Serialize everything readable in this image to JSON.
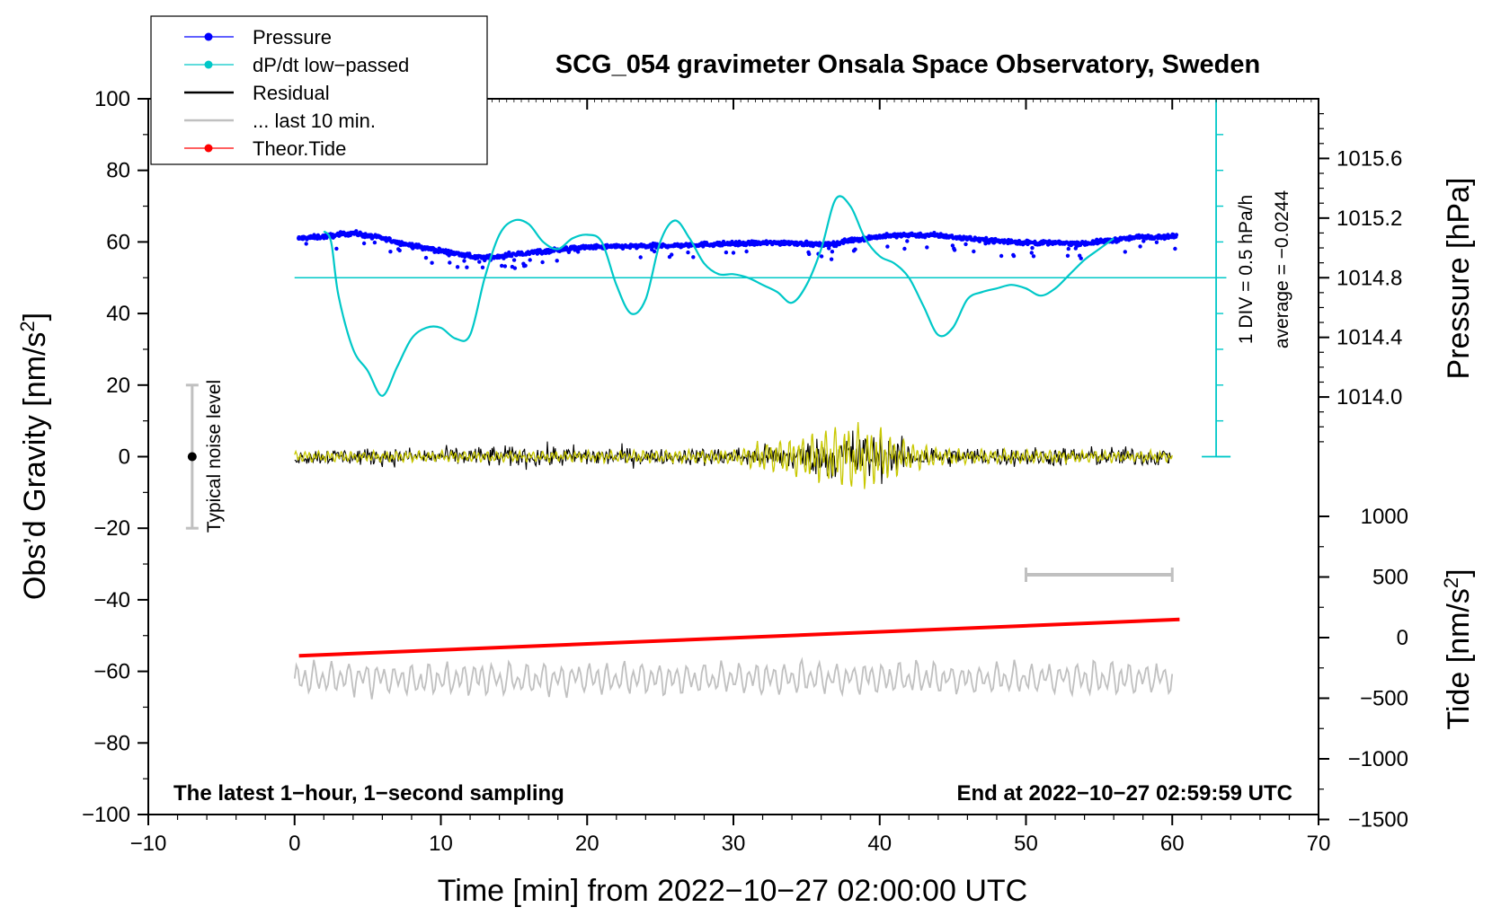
{
  "chart_data": {
    "type": "line",
    "title": "SCG_054 gravimeter Onsala Space Observatory, Sweden",
    "xlabel": "Time [min] from 2022−10−27 02:00:00 UTC",
    "ylabel_main": "Obs’d Gravity [nm/s",
    "ylabel_main_sup": "2",
    "ylabel_main_end": "]",
    "ylabel_pressure": "Pressure [hPa]",
    "ylabel_tide": "Tide [nm/s",
    "ylabel_tide_sup": "2",
    "ylabel_tide_end": "]",
    "xlim": [
      -10,
      70
    ],
    "ylim": [
      -100,
      100
    ],
    "x_ticks": [
      -10,
      0,
      10,
      20,
      30,
      40,
      50,
      60,
      70
    ],
    "x_tick_labels": [
      "−10",
      "0",
      "10",
      "20",
      "30",
      "40",
      "50",
      "60",
      "70"
    ],
    "y_ticks": [
      100,
      80,
      60,
      40,
      20,
      0,
      -20,
      -40,
      -60,
      -80,
      -100
    ],
    "y_tick_labels": [
      "100",
      "80",
      "60",
      "40",
      "20",
      "0",
      "−20",
      "−40",
      "−60",
      "−80",
      "−100"
    ],
    "pressure_axis": {
      "range": [
        1013.6,
        1016.0
      ],
      "ticks": [
        1014.0,
        1014.4,
        1014.8,
        1015.2,
        1015.6
      ],
      "tick_labels": [
        "1014.0",
        "1014.4",
        "1014.8",
        "1015.2",
        "1015.6"
      ]
    },
    "tide_axis": {
      "range": [
        -1500,
        1500
      ],
      "ticks": [
        1000,
        500,
        0,
        -500,
        -1000,
        -1500
      ],
      "tick_labels": [
        "1000",
        "500",
        "0",
        "−500",
        "−1000",
        "−1500"
      ]
    },
    "legend": [
      {
        "label": "Pressure",
        "color": "#0000ff",
        "marker": "dot"
      },
      {
        "label": "dP/dt low−passed",
        "color": "#00c8c8",
        "marker": "dot"
      },
      {
        "label": "Residual",
        "color": "#000000",
        "marker": "line"
      },
      {
        "label": "... last 10 min.",
        "color": "#c0c0c0",
        "marker": "line"
      },
      {
        "label": "Theor.Tide",
        "color": "#ff0000",
        "marker": "dot"
      }
    ],
    "legend_position": "top-left",
    "annotations": {
      "dpdt_scale": "1 DIV = 0.5 hPa/h",
      "dpdt_average": "average = −0.0244",
      "noise": "Typical noise level",
      "bottom_left": "The latest 1−hour, 1−second sampling",
      "bottom_right": "End at 2022−10−27 02:59:59 UTC"
    },
    "noise_bar": {
      "x": -7,
      "y_center": 0,
      "y_range": [
        -20,
        20
      ]
    },
    "last10_bar": {
      "x_range": [
        50,
        60
      ],
      "y": -33
    },
    "dpdt_baseline_y": 50,
    "dpdt_scale_bar": {
      "x": 63,
      "y_range": [
        0,
        100
      ],
      "divisions": 10
    },
    "series": [
      {
        "name": "Pressure",
        "color": "#0000ff",
        "x": [
          0.3,
          2,
          3,
          4,
          6,
          8,
          10,
          12,
          13,
          14,
          16,
          18,
          20,
          22,
          24,
          26,
          28,
          30,
          32,
          34,
          36,
          37,
          38,
          40,
          42,
          44,
          46,
          48,
          50,
          52,
          54,
          56,
          58,
          60
        ],
        "values": [
          61,
          61.5,
          62,
          62.5,
          61,
          59,
          57.5,
          56,
          55.5,
          56,
          57,
          57.8,
          58.5,
          58.7,
          58.8,
          59,
          59.3,
          59.5,
          59.7,
          59.8,
          59.2,
          59.5,
          60.5,
          61.5,
          62,
          61.8,
          61,
          60.3,
          59.8,
          59.7,
          59.6,
          60.5,
          61.5,
          61.5
        ]
      },
      {
        "name": "dP/dt low-passed",
        "color": "#00c8c8",
        "x": [
          2,
          2.5,
          3,
          4,
          5,
          6,
          7,
          8,
          9,
          10,
          11,
          12,
          13,
          14,
          15,
          16,
          17,
          18,
          19,
          20,
          21,
          22,
          23,
          24,
          25,
          26,
          27,
          28,
          29,
          30,
          31,
          32,
          33,
          34,
          35,
          36,
          37,
          38,
          39,
          40,
          41,
          42,
          43,
          44,
          45,
          46,
          47,
          48,
          49,
          50,
          51,
          52,
          53,
          54,
          55,
          56
        ],
        "values": [
          63,
          60,
          45,
          30,
          24,
          17,
          25,
          33,
          36,
          36,
          33,
          34,
          50,
          62,
          66,
          65,
          60,
          58,
          61,
          62,
          60,
          48,
          40,
          44,
          60,
          66,
          61,
          54,
          51,
          51,
          50,
          48,
          46,
          43,
          48,
          58,
          72,
          70,
          61,
          56,
          54,
          50,
          42,
          34,
          36,
          44,
          46,
          47,
          48,
          47,
          45,
          47,
          51,
          55,
          58,
          61
        ]
      },
      {
        "name": "Residual",
        "color": "#000000",
        "x_range": [
          0,
          60
        ],
        "envelope": [
          [
            0,
            4
          ],
          [
            10,
            5
          ],
          [
            20,
            6
          ],
          [
            25,
            4
          ],
          [
            30,
            5
          ],
          [
            33,
            7
          ],
          [
            36,
            10
          ],
          [
            38,
            15
          ],
          [
            40,
            12
          ],
          [
            42,
            7
          ],
          [
            45,
            5
          ],
          [
            50,
            5
          ],
          [
            55,
            5
          ],
          [
            60,
            5
          ]
        ]
      },
      {
        "name": "Residual low-passed",
        "color": "#c8c800",
        "x_range": [
          0,
          60
        ],
        "envelope": [
          [
            0,
            1.5
          ],
          [
            20,
            1.5
          ],
          [
            30,
            2
          ],
          [
            32,
            4
          ],
          [
            36,
            7
          ],
          [
            38,
            10
          ],
          [
            40,
            8
          ],
          [
            42,
            4
          ],
          [
            45,
            2
          ],
          [
            60,
            1.5
          ]
        ]
      },
      {
        "name": "... last 10 min.",
        "color": "#c0c0c0",
        "x_range": [
          0,
          60
        ],
        "center": -62,
        "amplitude": 4
      },
      {
        "name": "Theor.Tide",
        "color": "#ff0000",
        "x": [
          0.3,
          60.5
        ],
        "values_tide": [
          -150,
          150
        ]
      }
    ]
  }
}
